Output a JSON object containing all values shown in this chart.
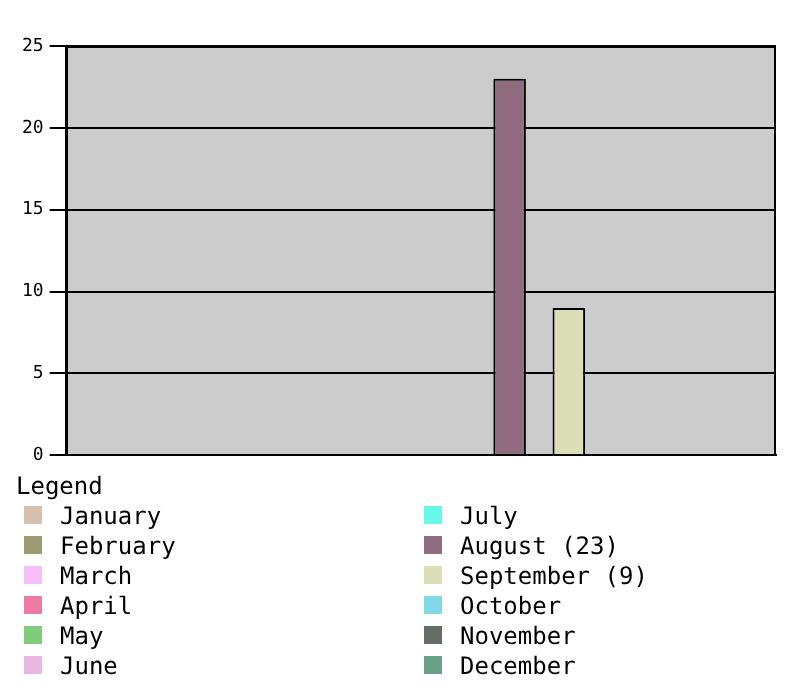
{
  "chart_data": {
    "type": "bar",
    "legend_title": "Legend",
    "categories": [
      null,
      null,
      null,
      null,
      null,
      null,
      null,
      null,
      null,
      null,
      null,
      null
    ],
    "series": [
      {
        "name": "January",
        "color": "#d4c0ac",
        "values": [
          0,
          null,
          null,
          null,
          null,
          null,
          null,
          null,
          null,
          null,
          null,
          null
        ]
      },
      {
        "name": "February",
        "color": "#9c9a70",
        "values": [
          null,
          0,
          null,
          null,
          null,
          null,
          null,
          null,
          null,
          null,
          null,
          null
        ]
      },
      {
        "name": "March",
        "color": "#f8bef8",
        "values": [
          null,
          null,
          0,
          null,
          null,
          null,
          null,
          null,
          null,
          null,
          null,
          null
        ]
      },
      {
        "name": "April",
        "color": "#ee7aa0",
        "values": [
          null,
          null,
          null,
          0,
          null,
          null,
          null,
          null,
          null,
          null,
          null,
          null
        ]
      },
      {
        "name": "May",
        "color": "#80cc78",
        "values": [
          null,
          null,
          null,
          null,
          0,
          null,
          null,
          null,
          null,
          null,
          null,
          null
        ]
      },
      {
        "name": "June",
        "color": "#e8b8e0",
        "values": [
          null,
          null,
          null,
          null,
          null,
          0,
          null,
          null,
          null,
          null,
          null,
          null
        ]
      },
      {
        "name": "July",
        "color": "#68f8e8",
        "values": [
          null,
          null,
          null,
          null,
          null,
          null,
          0,
          null,
          null,
          null,
          null,
          null
        ]
      },
      {
        "name": "August (23)",
        "color": "#906c80",
        "values": [
          null,
          null,
          null,
          null,
          null,
          null,
          null,
          23,
          null,
          null,
          null,
          null
        ]
      },
      {
        "name": "September (9)",
        "color": "#dcdeb8",
        "values": [
          null,
          null,
          null,
          null,
          null,
          null,
          null,
          null,
          9,
          null,
          null,
          null
        ]
      },
      {
        "name": "October",
        "color": "#80d8e8",
        "values": [
          null,
          null,
          null,
          null,
          null,
          null,
          null,
          null,
          null,
          0,
          null,
          null
        ]
      },
      {
        "name": "November",
        "color": "#646e64",
        "values": [
          null,
          null,
          null,
          null,
          null,
          null,
          null,
          null,
          null,
          null,
          0,
          null
        ]
      },
      {
        "name": "December",
        "color": "#68a088",
        "values": [
          null,
          null,
          null,
          null,
          null,
          null,
          null,
          null,
          null,
          null,
          null,
          0
        ]
      }
    ],
    "ylim": [
      0,
      25
    ],
    "yticks": [
      0,
      5,
      10,
      15,
      20,
      25
    ],
    "grid": "y",
    "legend": "bottom",
    "tick_labels": "y"
  }
}
